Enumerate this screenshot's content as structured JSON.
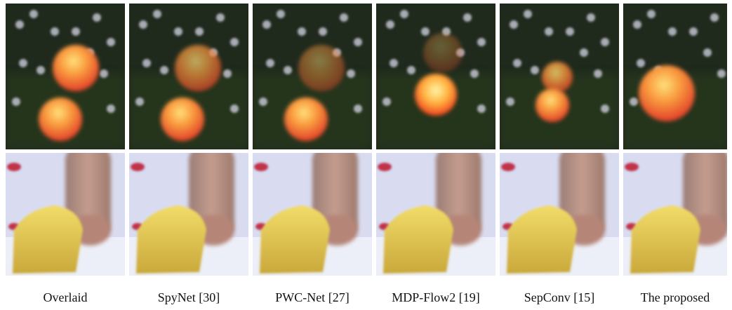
{
  "columns": [
    {
      "label": "Overlaid"
    },
    {
      "label": "SpyNet [30]"
    },
    {
      "label": "PWC-Net [27]"
    },
    {
      "label": "MDP-Flow2 [19]"
    },
    {
      "label": "SepConv [15]"
    },
    {
      "label": "The proposed"
    }
  ]
}
